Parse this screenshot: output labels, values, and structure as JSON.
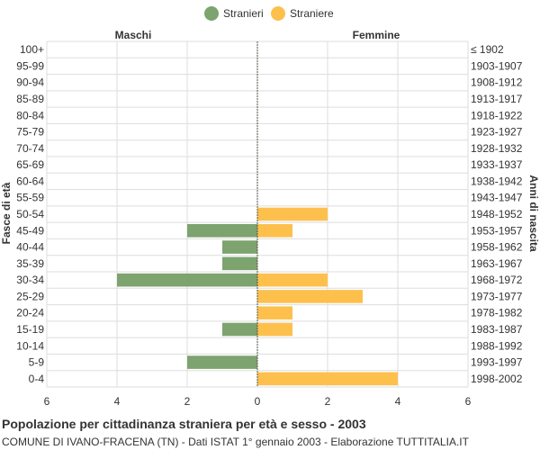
{
  "chart_data": {
    "type": "bar",
    "orientation": "horizontal-population-pyramid",
    "title": "Popolazione per cittadinanza straniera per età e sesso - 2003",
    "subtitle": "COMUNE DI IVANO-FRACENA (TN) - Dati ISTAT 1° gennaio 2003 - Elaborazione TUTTITALIA.IT",
    "left_label": "Maschi",
    "right_label": "Femmine",
    "ylabel_left": "Fasce di età",
    "ylabel_right": "Anni di nascita",
    "xlim": [
      -6,
      6
    ],
    "xticks": [
      -6,
      -4,
      -2,
      0,
      2,
      4,
      6
    ],
    "xtick_labels": [
      "6",
      "4",
      "2",
      "0",
      "2",
      "4",
      "6"
    ],
    "grid": true,
    "legend_position": "top-center",
    "categories": [
      "100+",
      "95-99",
      "90-94",
      "85-89",
      "80-84",
      "75-79",
      "70-74",
      "65-69",
      "60-64",
      "55-59",
      "50-54",
      "45-49",
      "40-44",
      "35-39",
      "30-34",
      "25-29",
      "20-24",
      "15-19",
      "10-14",
      "5-9",
      "0-4"
    ],
    "birth_years": [
      "≤ 1902",
      "1903-1907",
      "1908-1912",
      "1913-1917",
      "1918-1922",
      "1923-1927",
      "1928-1932",
      "1933-1937",
      "1938-1942",
      "1943-1947",
      "1948-1952",
      "1953-1957",
      "1958-1962",
      "1963-1967",
      "1968-1972",
      "1973-1977",
      "1978-1982",
      "1983-1987",
      "1988-1992",
      "1993-1997",
      "1998-2002"
    ],
    "series": [
      {
        "name": "Stranieri",
        "color": "#7da36f",
        "values": [
          0,
          0,
          0,
          0,
          0,
          0,
          0,
          0,
          0,
          0,
          0,
          2,
          1,
          1,
          4,
          0,
          0,
          1,
          0,
          2,
          0
        ]
      },
      {
        "name": "Straniere",
        "color": "#fdc04d",
        "values": [
          0,
          0,
          0,
          0,
          0,
          0,
          0,
          0,
          0,
          0,
          2,
          1,
          0,
          0,
          2,
          3,
          1,
          1,
          0,
          0,
          4
        ]
      }
    ]
  }
}
